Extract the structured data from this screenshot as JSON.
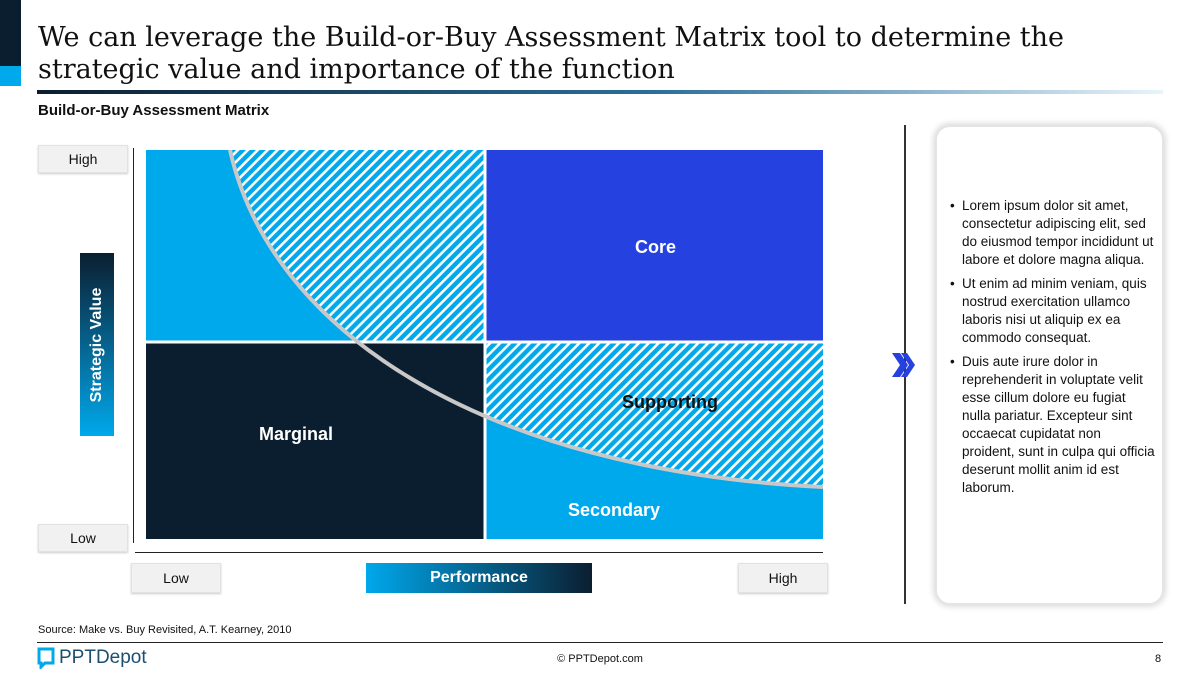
{
  "header": {
    "title": "We can leverage the Build-or-Buy Assessment Matrix tool to determine the strategic value and importance of the function",
    "subtitle": "Build-or-Buy Assessment Matrix"
  },
  "matrix": {
    "y_axis": {
      "label": "Strategic Value",
      "high": "High",
      "low": "Low"
    },
    "x_axis": {
      "label": "Performance",
      "low": "Low",
      "high": "High"
    },
    "quadrants": {
      "core": "Core",
      "supporting": "Supporting",
      "marginal": "Marginal",
      "secondary": "Secondary"
    },
    "colors": {
      "core": "#2541e0",
      "light": "#00a8ec",
      "dark": "#0b1e30"
    }
  },
  "panel": {
    "bullets": [
      "Lorem ipsum dolor sit amet, consectetur adipiscing elit, sed do eiusmod tempor incididunt ut labore et dolore magna aliqua.",
      "Ut enim ad minim veniam, quis nostrud exercitation ullamco laboris nisi ut aliquip ex ea commodo consequat.",
      "Duis aute irure dolor in reprehenderit in voluptate velit esse cillum dolore eu fugiat nulla pariatur. Excepteur sint occaecat cupidatat non proident, sunt in culpa qui officia deserunt mollit anim id est laborum."
    ]
  },
  "footer": {
    "source": "Source: Make vs. Buy Revisited, A.T. Kearney, 2010",
    "logo": "PPTDepot",
    "copyright": "© PPTDepot.com",
    "page": "8"
  }
}
